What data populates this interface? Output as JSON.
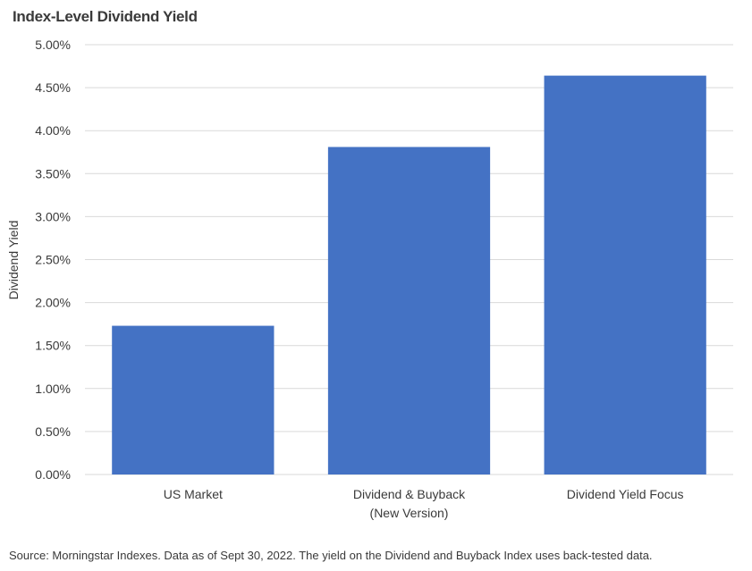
{
  "chart_data": {
    "type": "bar",
    "title": "Index-Level Dividend Yield",
    "xlabel": "",
    "ylabel": "Dividend Yield",
    "categories": [
      [
        "US Market"
      ],
      [
        "Dividend & Buyback",
        "(New Version)"
      ],
      [
        "Dividend Yield Focus"
      ]
    ],
    "series": [
      {
        "values": [
          1.73,
          3.81,
          4.64
        ]
      }
    ],
    "ylim": [
      0,
      5
    ],
    "yticks": [
      0,
      0.5,
      1,
      1.5,
      2,
      2.5,
      3,
      3.5,
      4,
      4.5,
      5
    ],
    "ytick_labels": [
      "0.00%",
      "0.50%",
      "1.00%",
      "1.50%",
      "2.00%",
      "2.50%",
      "3.00%",
      "3.50%",
      "4.00%",
      "4.50%",
      "5.00%"
    ],
    "grid": true,
    "bar_color": "#4472c4",
    "gridline_color": "#d9d9d9"
  },
  "footer": {
    "source": "Source: Morningstar Indexes. Data as of Sept 30, 2022. The yield on the Dividend and Buyback Index uses back-tested data."
  }
}
